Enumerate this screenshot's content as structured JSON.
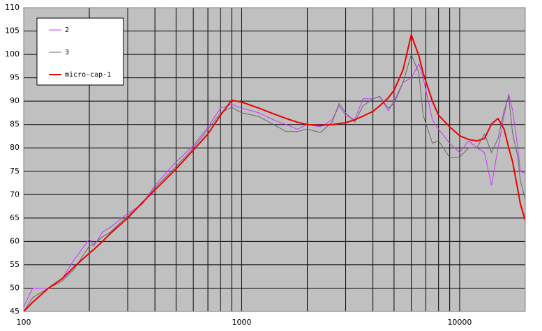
{
  "chart_data": {
    "type": "line",
    "log_x": true,
    "grid": true,
    "legend": "upper left",
    "background": "#c0c0c0",
    "xlim": [
      100,
      20000
    ],
    "xticks": [
      100,
      1000,
      10000
    ],
    "ylim": [
      45,
      110
    ],
    "yticks": [
      45,
      50,
      55,
      60,
      65,
      70,
      75,
      80,
      85,
      90,
      95,
      100,
      105,
      110
    ],
    "x": [
      100,
      110,
      130,
      150,
      170,
      200,
      210,
      230,
      250,
      300,
      350,
      400,
      500,
      600,
      700,
      800,
      900,
      1000,
      1200,
      1400,
      1600,
      1800,
      2000,
      2300,
      2600,
      2800,
      3000,
      3300,
      3600,
      4000,
      4300,
      4700,
      5000,
      5500,
      6000,
      6500,
      6800,
      7500,
      8000,
      9000,
      10000,
      11000,
      12000,
      13000,
      14000,
      15000,
      16000,
      16800,
      17500,
      18500,
      19000,
      20000
    ],
    "series": [
      {
        "name": "2",
        "color": "#cc33ff",
        "width": 1,
        "values": [
          46,
          50,
          50,
          52,
          56,
          60.5,
          59,
          62,
          63,
          66,
          68,
          72,
          77,
          80.5,
          84.5,
          88.5,
          89.3,
          88.5,
          87.5,
          86,
          85,
          84,
          85,
          84.5,
          86,
          89,
          87,
          86,
          90.5,
          90.5,
          91,
          88,
          90,
          94,
          95,
          98,
          95,
          86,
          84,
          81,
          79,
          81.5,
          80,
          79,
          72,
          80,
          87,
          91.5,
          88,
          80,
          75,
          74.5
        ]
      },
      {
        "name": "3",
        "color": "#666666",
        "width": 1,
        "values": [
          45,
          48,
          50,
          51.5,
          54,
          59,
          59.5,
          61,
          62,
          65.5,
          68,
          71.5,
          76,
          80,
          84,
          87.5,
          88.7,
          87.5,
          86.7,
          85,
          83.5,
          83.5,
          84,
          83.3,
          85.5,
          89.5,
          87.5,
          85.5,
          89,
          90.5,
          91,
          88.5,
          89.5,
          94,
          100,
          96,
          87,
          81,
          81.5,
          78,
          78,
          80,
          80,
          83,
          79,
          82,
          88,
          91,
          83,
          78,
          73,
          69
        ]
      },
      {
        "name": "micro-cap-1",
        "color": "#ee0000",
        "width": 2,
        "values": [
          45,
          47,
          50,
          52,
          54.5,
          57.5,
          58.3,
          60,
          61.7,
          65,
          68.3,
          71,
          75.5,
          79.5,
          83,
          87,
          90.2,
          89.8,
          88.5,
          87.3,
          86.3,
          85.5,
          85,
          84.8,
          85,
          85.2,
          85.4,
          86,
          86.8,
          87.8,
          89,
          90.7,
          92.3,
          96.7,
          104.2,
          99.7,
          96,
          90,
          87,
          84.5,
          82.6,
          81.8,
          81.5,
          82,
          85.1,
          86.3,
          84,
          80,
          77,
          71,
          68,
          64.5
        ]
      }
    ]
  }
}
